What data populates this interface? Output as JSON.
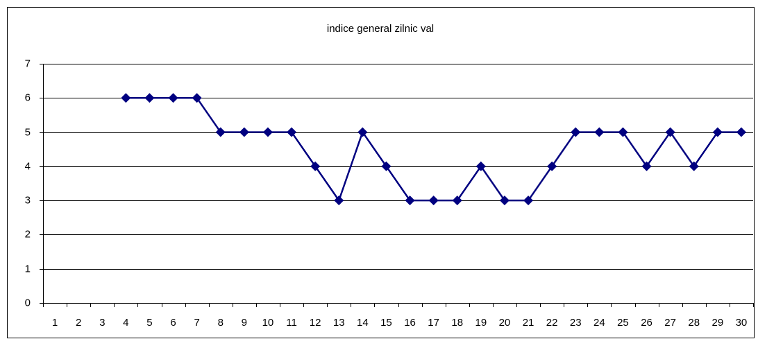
{
  "chart_data": {
    "type": "line",
    "title": "indice general zilnic val",
    "categories": [
      "1",
      "2",
      "3",
      "4",
      "5",
      "6",
      "7",
      "8",
      "9",
      "10",
      "11",
      "12",
      "13",
      "14",
      "15",
      "16",
      "17",
      "18",
      "19",
      "20",
      "21",
      "22",
      "23",
      "24",
      "25",
      "26",
      "27",
      "28",
      "29",
      "30"
    ],
    "series": [
      {
        "name": "indice general zilnic val",
        "color": "#000080",
        "values": [
          null,
          null,
          null,
          6,
          6,
          6,
          6,
          5,
          5,
          5,
          5,
          4,
          3,
          5,
          4,
          3,
          3,
          3,
          4,
          3,
          3,
          4,
          5,
          5,
          5,
          4,
          5,
          4,
          5,
          5
        ]
      }
    ],
    "ylim": [
      0,
      7
    ],
    "yticks": [
      0,
      1,
      2,
      3,
      4,
      5,
      6,
      7
    ],
    "grid": true,
    "legend": false
  }
}
